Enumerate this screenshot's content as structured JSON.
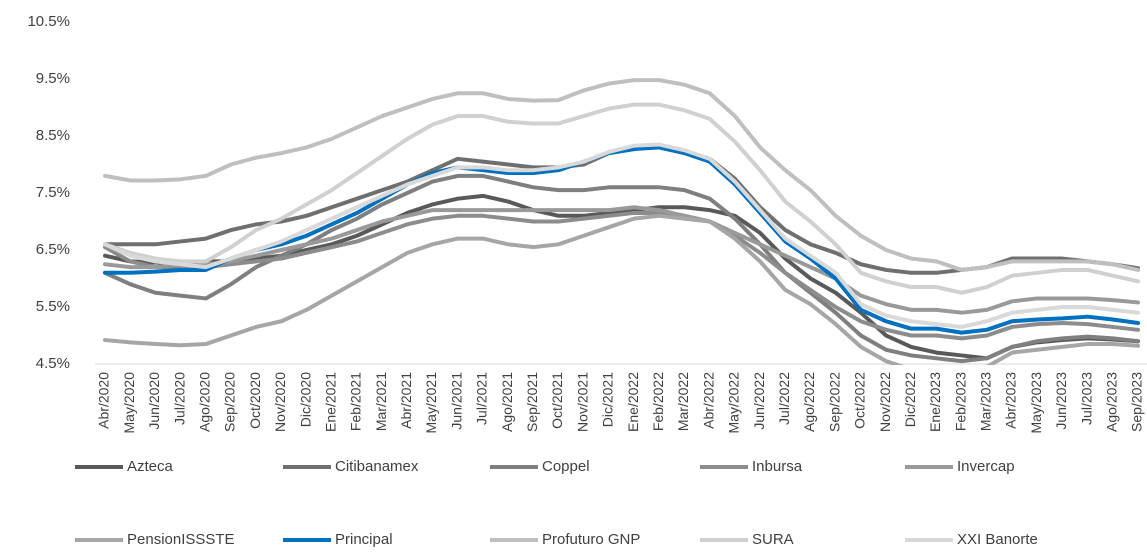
{
  "chart_data": {
    "type": "line",
    "categories": [
      "Abr/2020",
      "May/2020",
      "Jun/2020",
      "Jul/2020",
      "Ago/2020",
      "Sep/2020",
      "Oct/2020",
      "Nov/2020",
      "Dic/2020",
      "Ene/2021",
      "Feb/2021",
      "Mar/2021",
      "Abr/2021",
      "May/2021",
      "Jun/2021",
      "Jul/2021",
      "Ago/2021",
      "Sep/2021",
      "Oct/2021",
      "Nov/2021",
      "Dic/2021",
      "Ene/2022",
      "Feb/2022",
      "Mar/2022",
      "Abr/2022",
      "May/2022",
      "Jun/2022",
      "Jul/2022",
      "Ago/2022",
      "Sep/2022",
      "Oct/2022",
      "Nov/2022",
      "Dic/2022",
      "Ene/2023",
      "Feb/2023",
      "Mar/2023",
      "Abr/2023",
      "May/2023",
      "Jun/2023",
      "Jul/2023",
      "Ago/2023",
      "Sep/2023"
    ],
    "series": [
      {
        "name": "Azteca",
        "color": "#595959",
        "values": [
          6.4,
          6.3,
          6.28,
          6.25,
          6.3,
          6.3,
          6.35,
          6.4,
          6.5,
          6.6,
          6.75,
          6.95,
          7.15,
          7.3,
          7.4,
          7.45,
          7.35,
          7.2,
          7.1,
          7.1,
          7.15,
          7.2,
          7.25,
          7.25,
          7.2,
          7.1,
          6.8,
          6.35,
          6.0,
          5.75,
          5.4,
          5.0,
          4.8,
          4.7,
          4.65,
          4.6,
          4.8,
          4.88,
          4.92,
          4.95,
          4.93,
          4.9
        ]
      },
      {
        "name": "Citibanamex",
        "color": "#6f6f6f",
        "values": [
          6.6,
          6.6,
          6.6,
          6.65,
          6.7,
          6.85,
          6.95,
          7.0,
          7.1,
          7.25,
          7.4,
          7.55,
          7.7,
          7.9,
          8.1,
          8.05,
          8.0,
          7.95,
          7.95,
          8.0,
          8.2,
          8.3,
          8.3,
          8.2,
          8.1,
          7.75,
          7.25,
          6.85,
          6.6,
          6.45,
          6.25,
          6.15,
          6.1,
          6.1,
          6.15,
          6.2,
          6.35,
          6.35,
          6.35,
          6.3,
          6.25,
          6.18
        ]
      },
      {
        "name": "Coppel",
        "color": "#7f7f7f",
        "values": [
          6.1,
          5.9,
          5.75,
          5.7,
          5.65,
          5.9,
          6.2,
          6.4,
          6.6,
          6.85,
          7.05,
          7.3,
          7.5,
          7.7,
          7.8,
          7.8,
          7.7,
          7.6,
          7.55,
          7.55,
          7.6,
          7.6,
          7.6,
          7.55,
          7.4,
          7.05,
          6.6,
          6.1,
          5.75,
          5.4,
          5.0,
          4.75,
          4.65,
          4.6,
          4.55,
          4.6,
          4.8,
          4.9,
          4.95,
          4.98,
          4.95,
          4.9
        ]
      },
      {
        "name": "Inbursa",
        "color": "#8c8c8c",
        "values": [
          6.55,
          6.3,
          6.2,
          6.2,
          6.2,
          6.25,
          6.3,
          6.35,
          6.45,
          6.55,
          6.65,
          6.8,
          6.95,
          7.05,
          7.1,
          7.1,
          7.05,
          7.0,
          7.0,
          7.05,
          7.1,
          7.15,
          7.15,
          7.1,
          7.0,
          6.75,
          6.45,
          6.1,
          5.8,
          5.5,
          5.25,
          5.1,
          5.0,
          5.0,
          4.95,
          5.0,
          5.15,
          5.2,
          5.22,
          5.2,
          5.15,
          5.1
        ]
      },
      {
        "name": "Invercap",
        "color": "#999999",
        "values": [
          6.25,
          6.2,
          6.2,
          6.25,
          6.25,
          6.3,
          6.4,
          6.5,
          6.6,
          6.7,
          6.85,
          7.0,
          7.1,
          7.2,
          7.2,
          7.2,
          7.2,
          7.2,
          7.2,
          7.2,
          7.2,
          7.25,
          7.2,
          7.1,
          7.0,
          6.8,
          6.6,
          6.4,
          6.2,
          6.0,
          5.7,
          5.55,
          5.45,
          5.45,
          5.4,
          5.45,
          5.6,
          5.65,
          5.65,
          5.65,
          5.62,
          5.58
        ]
      },
      {
        "name": "PensionISSSTE",
        "color": "#a6a6a6",
        "values": [
          4.92,
          4.88,
          4.85,
          4.83,
          4.85,
          5.0,
          5.15,
          5.25,
          5.45,
          5.7,
          5.95,
          6.2,
          6.45,
          6.6,
          6.7,
          6.7,
          6.6,
          6.55,
          6.6,
          6.75,
          6.9,
          7.05,
          7.1,
          7.05,
          7.0,
          6.7,
          6.3,
          5.8,
          5.55,
          5.2,
          4.8,
          4.55,
          4.4,
          4.35,
          4.35,
          4.45,
          4.7,
          4.75,
          4.8,
          4.85,
          4.85,
          4.82
        ]
      },
      {
        "name": "Principal",
        "color": "#0070c0",
        "values": [
          6.1,
          6.1,
          6.12,
          6.15,
          6.15,
          6.35,
          6.5,
          6.6,
          6.75,
          6.95,
          7.15,
          7.4,
          7.65,
          7.85,
          7.95,
          7.9,
          7.85,
          7.85,
          7.9,
          8.05,
          8.2,
          8.27,
          8.3,
          8.2,
          8.05,
          7.65,
          7.15,
          6.65,
          6.35,
          6.0,
          5.45,
          5.25,
          5.12,
          5.12,
          5.05,
          5.1,
          5.25,
          5.28,
          5.3,
          5.33,
          5.28,
          5.22
        ]
      },
      {
        "name": "Profuturo GNP",
        "color": "#bfbfbf",
        "values": [
          7.8,
          7.72,
          7.72,
          7.74,
          7.8,
          8.0,
          8.12,
          8.2,
          8.3,
          8.45,
          8.65,
          8.85,
          9.0,
          9.15,
          9.25,
          9.25,
          9.15,
          9.12,
          9.13,
          9.3,
          9.42,
          9.48,
          9.48,
          9.4,
          9.25,
          8.85,
          8.3,
          7.9,
          7.55,
          7.1,
          6.75,
          6.5,
          6.35,
          6.3,
          6.15,
          6.2,
          6.3,
          6.3,
          6.3,
          6.3,
          6.25,
          6.15
        ]
      },
      {
        "name": "SURA",
        "color": "#d0d0d0",
        "values": [
          6.6,
          6.45,
          6.35,
          6.3,
          6.3,
          6.55,
          6.85,
          7.05,
          7.3,
          7.55,
          7.85,
          8.15,
          8.45,
          8.7,
          8.85,
          8.85,
          8.75,
          8.72,
          8.72,
          8.85,
          8.98,
          9.05,
          9.05,
          8.95,
          8.8,
          8.4,
          7.9,
          7.35,
          7.0,
          6.6,
          6.1,
          5.95,
          5.85,
          5.85,
          5.75,
          5.85,
          6.05,
          6.1,
          6.15,
          6.15,
          6.05,
          5.95
        ]
      },
      {
        "name": "XXI Banorte",
        "color": "#d9d9d9",
        "values": [
          6.6,
          6.4,
          6.3,
          6.25,
          6.2,
          6.35,
          6.5,
          6.65,
          6.85,
          7.05,
          7.25,
          7.45,
          7.65,
          7.8,
          7.95,
          7.95,
          7.9,
          7.9,
          7.95,
          8.05,
          8.22,
          8.33,
          8.35,
          8.25,
          8.1,
          7.7,
          7.2,
          6.7,
          6.4,
          6.1,
          5.55,
          5.35,
          5.25,
          5.2,
          5.15,
          5.25,
          5.4,
          5.45,
          5.5,
          5.5,
          5.45,
          5.4
        ]
      }
    ],
    "ylim": [
      4.5,
      10.5
    ],
    "yticks": [
      {
        "value": 4.5,
        "label": "4.5%"
      },
      {
        "value": 5.5,
        "label": "5.5%"
      },
      {
        "value": 6.5,
        "label": "6.5%"
      },
      {
        "value": 7.5,
        "label": "7.5%"
      },
      {
        "value": 8.5,
        "label": "8.5%"
      },
      {
        "value": 9.5,
        "label": "9.5%"
      },
      {
        "value": 10.5,
        "label": "10.5%"
      }
    ],
    "grid": false
  }
}
